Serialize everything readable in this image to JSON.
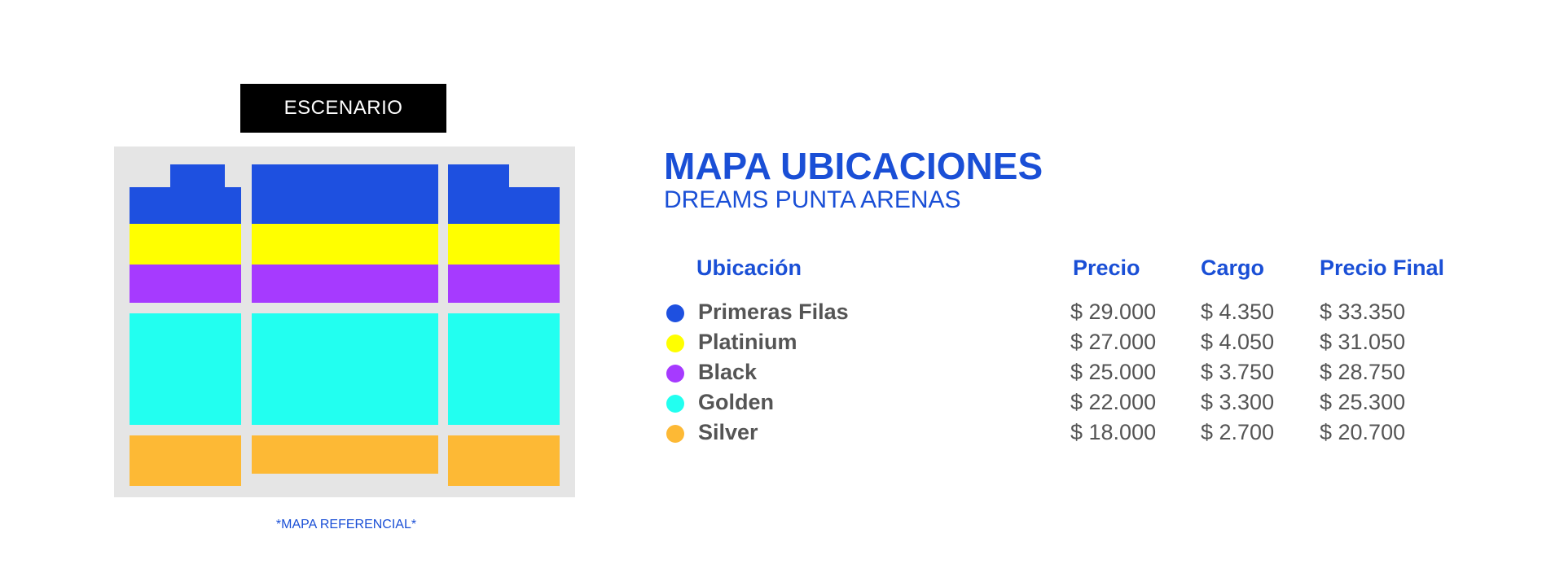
{
  "stage_label": "ESCENARIO",
  "map_note": "*MAPA REFERENCIAL*",
  "heading": {
    "title": "MAPA UBICACIONES",
    "subtitle": "DREAMS PUNTA ARENAS"
  },
  "table": {
    "headers": {
      "location": "Ubicación",
      "price": "Precio",
      "fee": "Cargo",
      "final": "Precio Final"
    },
    "rows": [
      {
        "name": "Primeras Filas",
        "color": "#1e50e0",
        "price": "$ 29.000",
        "fee": "$ 4.350",
        "final": "$ 33.350"
      },
      {
        "name": "Platinium",
        "color": "#ffff00",
        "price": "$ 27.000",
        "fee": "$ 4.050",
        "final": "$ 31.050"
      },
      {
        "name": "Black",
        "color": "#a63aff",
        "price": "$ 25.000",
        "fee": "$ 3.750",
        "final": "$ 28.750"
      },
      {
        "name": "Golden",
        "color": "#22fff0",
        "price": "$ 22.000",
        "fee": "$ 3.300",
        "final": "$ 25.300"
      },
      {
        "name": "Silver",
        "color": "#fdb935",
        "price": "$ 18.000",
        "fee": "$ 2.700",
        "final": "$ 20.700"
      }
    ]
  },
  "colors": {
    "accent_blue": "#1a4fd6",
    "text_gray": "#555555",
    "map_bg": "#e5e5e5"
  }
}
